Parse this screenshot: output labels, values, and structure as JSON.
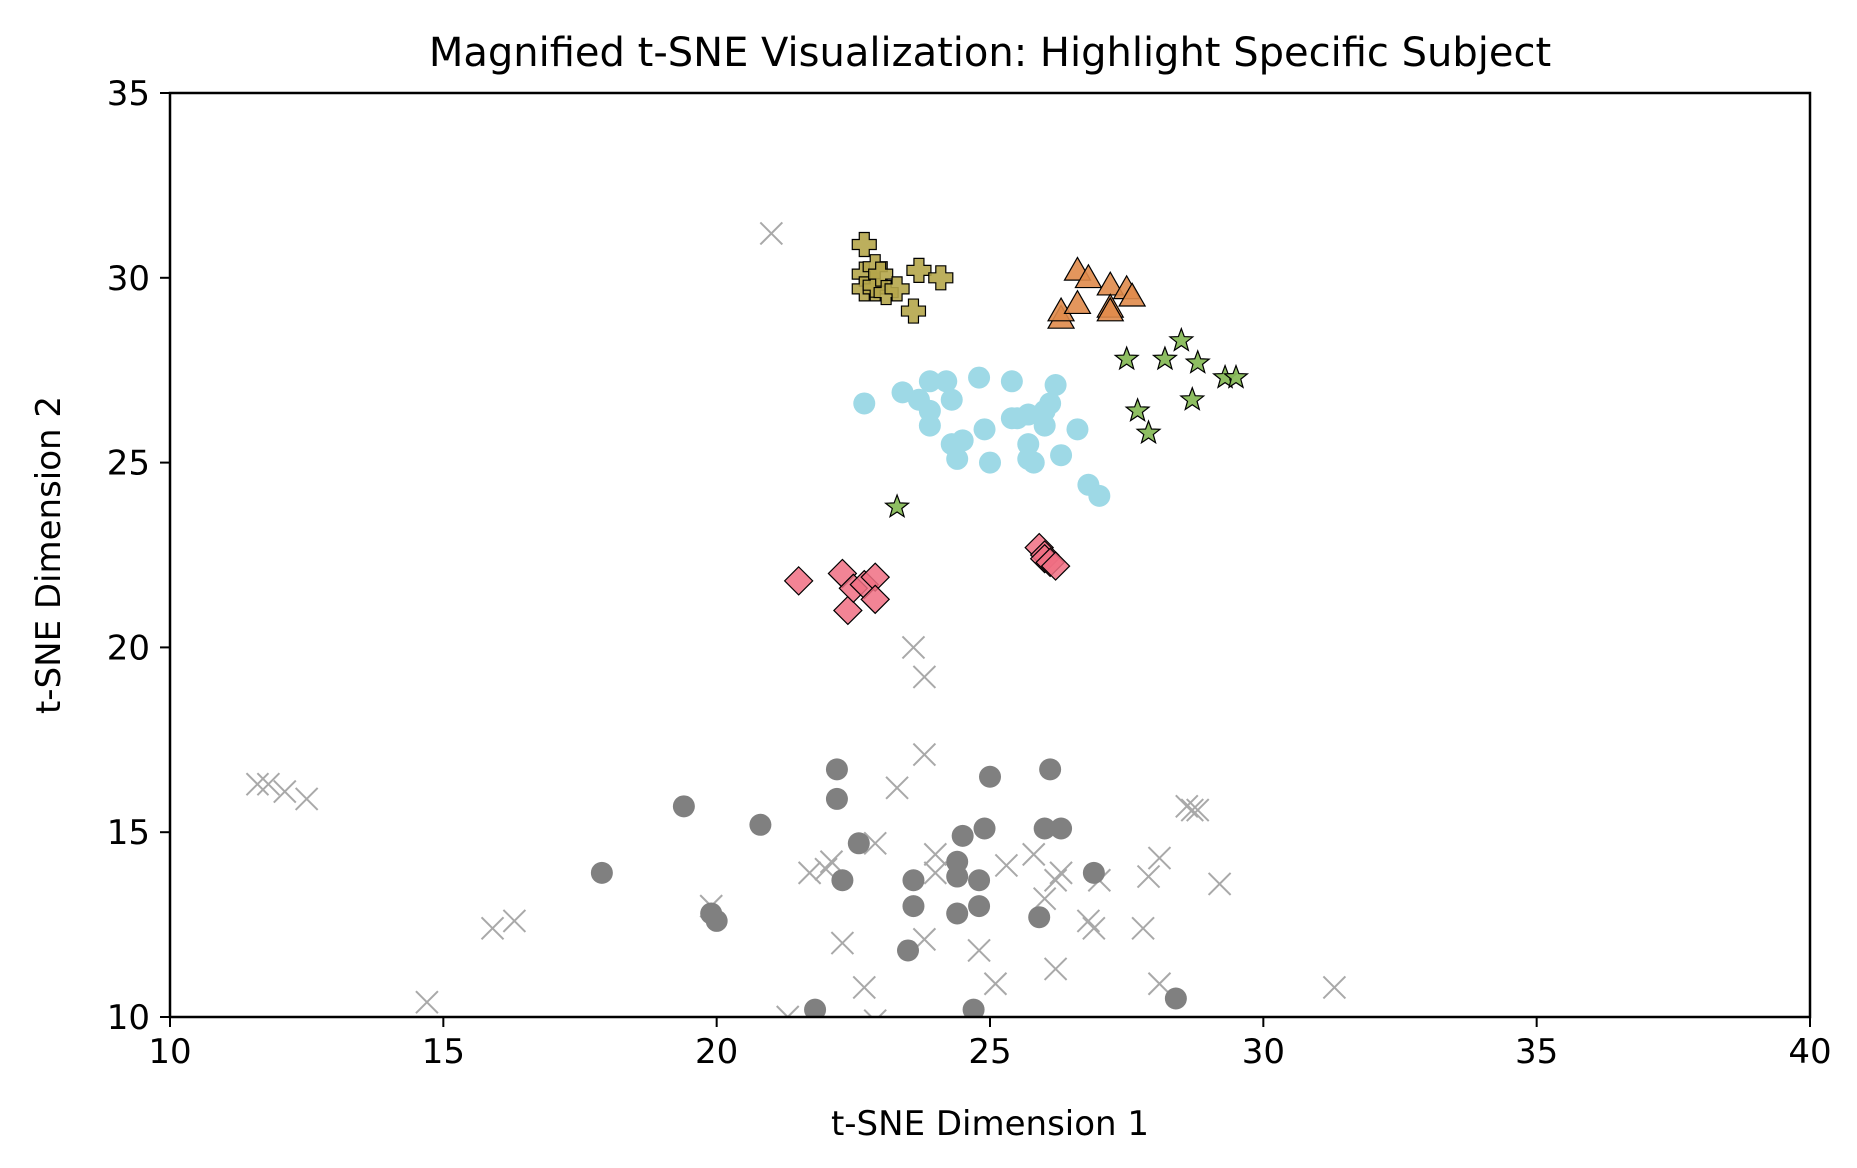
{
  "chart_data": {
    "type": "scatter",
    "title": "Magnified t-SNE Visualization: Highlight Specific Subject",
    "xlabel": "t-SNE Dimension 1",
    "ylabel": "t-SNE Dimension 2",
    "xlim": [
      10,
      40
    ],
    "ylim": [
      10,
      35
    ],
    "xticks": [
      "10",
      "15",
      "20",
      "25",
      "30",
      "35",
      "40"
    ],
    "yticks": [
      "10",
      "15",
      "20",
      "25",
      "30",
      "35"
    ],
    "grid": false,
    "series": [
      {
        "name": "background-x",
        "marker": "x",
        "color": "#a9a9a9",
        "points": [
          [
            21.0,
            31.2
          ],
          [
            11.6,
            16.3
          ],
          [
            11.8,
            16.3
          ],
          [
            12.1,
            16.1
          ],
          [
            12.5,
            15.9
          ],
          [
            14.7,
            10.4
          ],
          [
            15.9,
            12.4
          ],
          [
            16.3,
            12.6
          ],
          [
            19.9,
            13.0
          ],
          [
            21.3,
            10.0
          ],
          [
            21.7,
            13.9
          ],
          [
            22.0,
            14.0
          ],
          [
            22.1,
            14.2
          ],
          [
            22.3,
            12.0
          ],
          [
            22.7,
            10.8
          ],
          [
            22.9,
            14.7
          ],
          [
            22.9,
            9.9
          ],
          [
            23.3,
            16.2
          ],
          [
            23.6,
            20.0
          ],
          [
            23.8,
            19.2
          ],
          [
            23.8,
            17.1
          ],
          [
            23.8,
            12.1
          ],
          [
            24.0,
            14.4
          ],
          [
            24.0,
            13.9
          ],
          [
            24.8,
            11.8
          ],
          [
            25.1,
            10.9
          ],
          [
            25.3,
            14.1
          ],
          [
            25.8,
            14.4
          ],
          [
            26.0,
            13.2
          ],
          [
            26.2,
            13.7
          ],
          [
            26.2,
            11.3
          ],
          [
            26.3,
            13.9
          ],
          [
            26.8,
            12.6
          ],
          [
            26.9,
            12.4
          ],
          [
            27.0,
            13.7
          ],
          [
            27.8,
            12.4
          ],
          [
            27.9,
            13.8
          ],
          [
            28.1,
            14.3
          ],
          [
            28.1,
            10.9
          ],
          [
            28.6,
            15.7
          ],
          [
            28.7,
            15.6
          ],
          [
            28.8,
            15.6
          ],
          [
            29.2,
            13.6
          ],
          [
            31.3,
            10.8
          ]
        ]
      },
      {
        "name": "gray-circles",
        "marker": "circle",
        "color": "#808080",
        "points": [
          [
            17.9,
            13.9
          ],
          [
            19.4,
            15.7
          ],
          [
            19.9,
            12.8
          ],
          [
            20.0,
            12.6
          ],
          [
            20.8,
            15.2
          ],
          [
            21.8,
            10.2
          ],
          [
            22.2,
            16.7
          ],
          [
            22.2,
            15.9
          ],
          [
            22.3,
            13.7
          ],
          [
            22.6,
            14.7
          ],
          [
            23.5,
            11.8
          ],
          [
            23.6,
            13.0
          ],
          [
            23.6,
            13.7
          ],
          [
            24.4,
            12.8
          ],
          [
            24.4,
            13.8
          ],
          [
            24.4,
            14.2
          ],
          [
            24.5,
            14.9
          ],
          [
            24.7,
            10.2
          ],
          [
            24.8,
            13.7
          ],
          [
            24.8,
            13.0
          ],
          [
            24.9,
            15.1
          ],
          [
            25.0,
            16.5
          ],
          [
            25.9,
            12.7
          ],
          [
            26.0,
            15.1
          ],
          [
            26.1,
            16.7
          ],
          [
            26.3,
            15.1
          ],
          [
            26.9,
            13.9
          ],
          [
            28.4,
            10.5
          ]
        ]
      },
      {
        "name": "light-blue-circles",
        "marker": "circle",
        "color": "#9ed9e6",
        "points": [
          [
            22.7,
            26.6
          ],
          [
            23.4,
            26.9
          ],
          [
            23.7,
            26.7
          ],
          [
            23.9,
            27.2
          ],
          [
            23.9,
            26.0
          ],
          [
            23.9,
            26.4
          ],
          [
            24.2,
            27.2
          ],
          [
            24.3,
            26.7
          ],
          [
            24.3,
            25.5
          ],
          [
            24.4,
            25.1
          ],
          [
            24.5,
            25.6
          ],
          [
            24.8,
            27.3
          ],
          [
            24.9,
            25.9
          ],
          [
            25.0,
            25.0
          ],
          [
            25.4,
            27.2
          ],
          [
            25.4,
            26.2
          ],
          [
            25.5,
            26.2
          ],
          [
            25.7,
            26.3
          ],
          [
            25.7,
            25.5
          ],
          [
            25.7,
            25.1
          ],
          [
            25.8,
            25.0
          ],
          [
            26.0,
            26.0
          ],
          [
            26.0,
            26.4
          ],
          [
            26.1,
            26.6
          ],
          [
            26.2,
            27.1
          ],
          [
            26.3,
            25.2
          ],
          [
            26.6,
            25.9
          ],
          [
            26.8,
            24.4
          ],
          [
            27.0,
            24.1
          ]
        ]
      },
      {
        "name": "olive-plus",
        "marker": "plus",
        "color": "#b5a64b",
        "points": [
          [
            22.7,
            30.9
          ],
          [
            22.7,
            30.1
          ],
          [
            22.7,
            29.7
          ],
          [
            22.9,
            29.7
          ],
          [
            22.9,
            29.8
          ],
          [
            22.9,
            30.3
          ],
          [
            23.0,
            30.1
          ],
          [
            23.1,
            29.6
          ],
          [
            23.3,
            29.7
          ],
          [
            23.6,
            29.1
          ],
          [
            23.7,
            30.2
          ],
          [
            24.1,
            30.0
          ]
        ]
      },
      {
        "name": "orange-triangles",
        "marker": "triangle",
        "color": "#e08b4b",
        "points": [
          [
            26.3,
            28.9
          ],
          [
            26.3,
            29.1
          ],
          [
            26.6,
            30.2
          ],
          [
            26.6,
            29.3
          ],
          [
            26.8,
            30.0
          ],
          [
            27.2,
            29.8
          ],
          [
            27.2,
            29.2
          ],
          [
            27.2,
            29.1
          ],
          [
            27.5,
            29.7
          ],
          [
            27.6,
            29.5
          ]
        ]
      },
      {
        "name": "green-stars",
        "marker": "star",
        "color": "#88ba5a",
        "points": [
          [
            23.3,
            23.8
          ],
          [
            27.5,
            27.8
          ],
          [
            27.7,
            26.4
          ],
          [
            27.9,
            25.8
          ],
          [
            28.2,
            27.8
          ],
          [
            28.5,
            28.3
          ],
          [
            28.7,
            26.7
          ],
          [
            28.8,
            27.7
          ],
          [
            29.3,
            27.3
          ],
          [
            29.5,
            27.3
          ]
        ]
      },
      {
        "name": "pink-diamonds",
        "marker": "diamond",
        "color": "#f06e82",
        "points": [
          [
            21.5,
            21.8
          ],
          [
            22.3,
            22.0
          ],
          [
            22.4,
            21.0
          ],
          [
            22.5,
            21.6
          ],
          [
            22.7,
            21.7
          ],
          [
            22.9,
            21.9
          ],
          [
            22.9,
            21.3
          ],
          [
            25.9,
            22.7
          ],
          [
            26.0,
            22.5
          ],
          [
            26.0,
            22.4
          ],
          [
            26.1,
            22.3
          ],
          [
            26.2,
            22.2
          ]
        ]
      }
    ]
  }
}
